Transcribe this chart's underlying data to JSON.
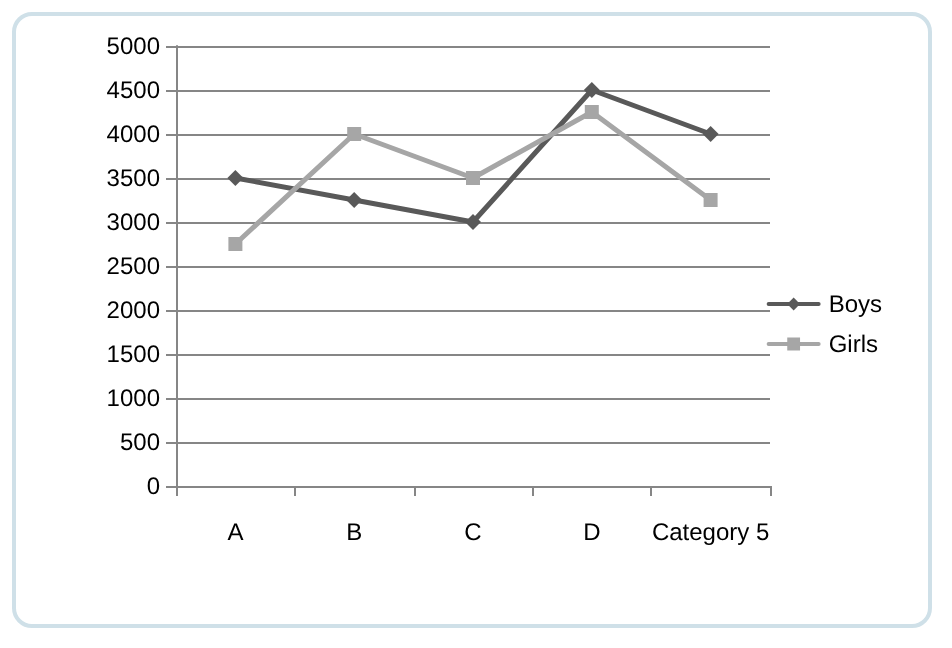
{
  "chart_data": {
    "type": "line",
    "categories": [
      "A",
      "B",
      "C",
      "D",
      "Category 5"
    ],
    "series": [
      {
        "name": "Boys",
        "color": "#595959",
        "marker": "diamond",
        "values": [
          3500,
          3250,
          3000,
          4500,
          4000
        ]
      },
      {
        "name": "Girls",
        "color": "#a6a6a6",
        "marker": "square",
        "values": [
          2750,
          4000,
          3500,
          4250,
          3250
        ]
      }
    ],
    "ylim": [
      0,
      5000
    ],
    "yticks": [
      0,
      500,
      1000,
      1500,
      2000,
      2500,
      3000,
      3500,
      4000,
      4500,
      5000
    ],
    "grid": "y",
    "legend": "right",
    "line_style": "solid"
  }
}
